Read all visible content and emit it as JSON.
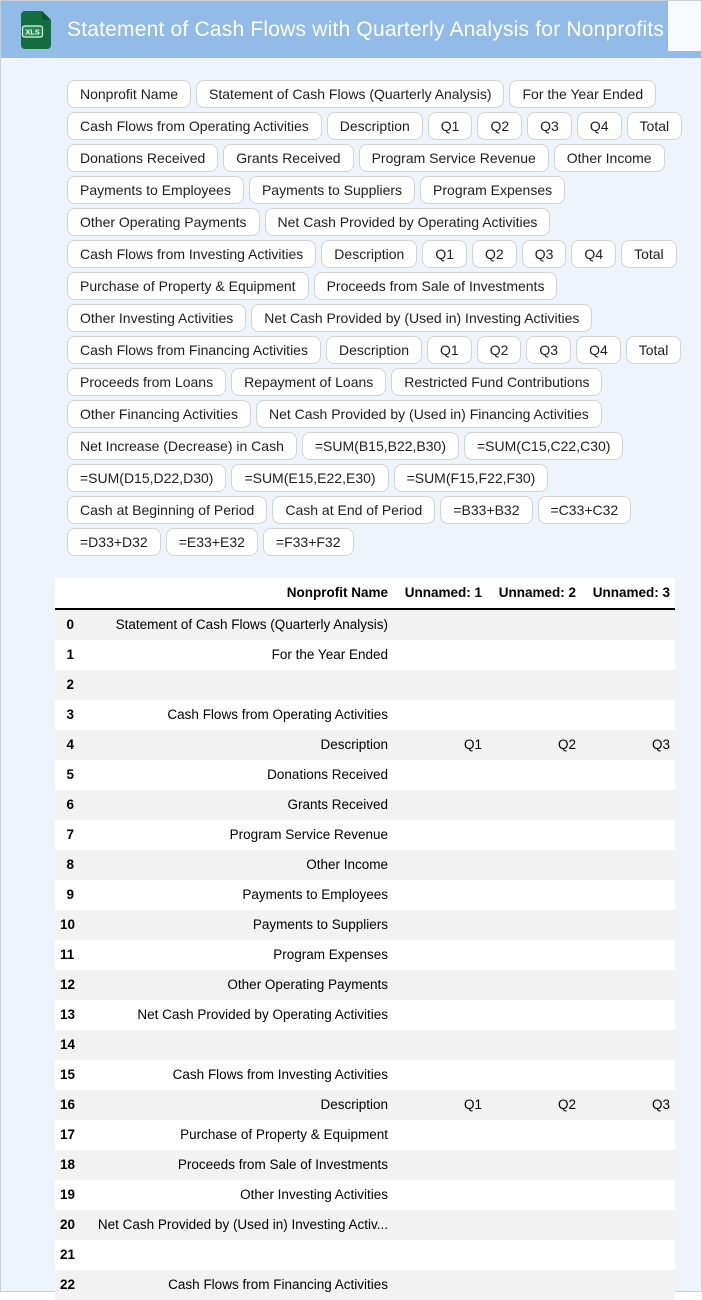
{
  "header": {
    "title": "Statement of Cash Flows with Quarterly Analysis for Nonprofits",
    "file_badge": "XLS",
    "colors": {
      "bar_blue": "#92bbe7",
      "icon_green": "#146c41",
      "icon_green_dark": "#0e5531",
      "icon_badge_green": "#1f8a55",
      "title_text": "#ffffff"
    }
  },
  "chips": {
    "rows": [
      [
        "Nonprofit Name",
        "Statement of Cash Flows (Quarterly Analysis)",
        "For the Year Ended"
      ],
      [
        "Cash Flows from Operating Activities",
        "Description",
        "Q1",
        "Q2",
        "Q3",
        "Q4",
        "Total"
      ],
      [
        "Donations Received",
        "Grants Received",
        "Program Service Revenue",
        "Other Income"
      ],
      [
        "Payments to Employees",
        "Payments to Suppliers",
        "Program Expenses"
      ],
      [
        "Other Operating Payments",
        "Net Cash Provided by Operating Activities"
      ],
      [
        "Cash Flows from Investing Activities",
        "Description",
        "Q1",
        "Q2",
        "Q3",
        "Q4",
        "Total"
      ],
      [
        "Purchase of Property & Equipment",
        "Proceeds from Sale of Investments"
      ],
      [
        "Other Investing Activities",
        "Net Cash Provided by (Used in) Investing Activities"
      ],
      [
        "Cash Flows from Financing Activities",
        "Description",
        "Q1",
        "Q2",
        "Q3",
        "Q4",
        "Total"
      ],
      [
        "Proceeds from Loans",
        "Repayment of Loans",
        "Restricted Fund Contributions"
      ],
      [
        "Other Financing Activities",
        "Net Cash Provided by (Used in) Financing Activities"
      ],
      [
        "Net Increase (Decrease) in Cash",
        "=SUM(B15,B22,B30)",
        "=SUM(C15,C22,C30)"
      ],
      [
        "=SUM(D15,D22,D30)",
        "=SUM(E15,E22,E30)",
        "=SUM(F15,F22,F30)"
      ],
      [
        "Cash at Beginning of Period",
        "Cash at End of Period",
        "=B33+B32",
        "=C33+C32"
      ],
      [
        "=D33+D32",
        "=E33+E32",
        "=F33+F32"
      ]
    ]
  },
  "table": {
    "columns": [
      "",
      "Nonprofit Name",
      "Unnamed: 1",
      "Unnamed: 2",
      "Unnamed: 3"
    ],
    "rows": [
      {
        "index": "0",
        "cells": [
          "Statement of Cash Flows (Quarterly Analysis)",
          "",
          "",
          ""
        ]
      },
      {
        "index": "1",
        "cells": [
          "For the Year Ended",
          "",
          "",
          ""
        ]
      },
      {
        "index": "2",
        "cells": [
          "",
          "",
          "",
          ""
        ]
      },
      {
        "index": "3",
        "cells": [
          "Cash Flows from Operating Activities",
          "",
          "",
          ""
        ]
      },
      {
        "index": "4",
        "cells": [
          "Description",
          "Q1",
          "Q2",
          "Q3"
        ]
      },
      {
        "index": "5",
        "cells": [
          "Donations Received",
          "",
          "",
          ""
        ]
      },
      {
        "index": "6",
        "cells": [
          "Grants Received",
          "",
          "",
          ""
        ]
      },
      {
        "index": "7",
        "cells": [
          "Program Service Revenue",
          "",
          "",
          ""
        ]
      },
      {
        "index": "8",
        "cells": [
          "Other Income",
          "",
          "",
          ""
        ]
      },
      {
        "index": "9",
        "cells": [
          "Payments to Employees",
          "",
          "",
          ""
        ]
      },
      {
        "index": "10",
        "cells": [
          "Payments to Suppliers",
          "",
          "",
          ""
        ]
      },
      {
        "index": "11",
        "cells": [
          "Program Expenses",
          "",
          "",
          ""
        ]
      },
      {
        "index": "12",
        "cells": [
          "Other Operating Payments",
          "",
          "",
          ""
        ]
      },
      {
        "index": "13",
        "cells": [
          "Net Cash Provided by Operating Activities",
          "",
          "",
          ""
        ]
      },
      {
        "index": "14",
        "cells": [
          "",
          "",
          "",
          ""
        ]
      },
      {
        "index": "15",
        "cells": [
          "Cash Flows from Investing Activities",
          "",
          "",
          ""
        ]
      },
      {
        "index": "16",
        "cells": [
          "Description",
          "Q1",
          "Q2",
          "Q3"
        ]
      },
      {
        "index": "17",
        "cells": [
          "Purchase of Property & Equipment",
          "",
          "",
          ""
        ]
      },
      {
        "index": "18",
        "cells": [
          "Proceeds from Sale of Investments",
          "",
          "",
          ""
        ]
      },
      {
        "index": "19",
        "cells": [
          "Other Investing Activities",
          "",
          "",
          ""
        ]
      },
      {
        "index": "20",
        "cells": [
          "Net Cash Provided by (Used in) Investing Activ...",
          "",
          "",
          ""
        ]
      },
      {
        "index": "21",
        "cells": [
          "",
          "",
          "",
          ""
        ]
      },
      {
        "index": "22",
        "cells": [
          "Cash Flows from Financing Activities",
          "",
          "",
          ""
        ]
      }
    ]
  },
  "colors": {
    "page_bg": "#eef4fc",
    "chip_bg": "#ffffff",
    "chip_border": "#d2d2d2",
    "table_stripe": "#f2f2f2",
    "table_header_rule": "#000000"
  }
}
